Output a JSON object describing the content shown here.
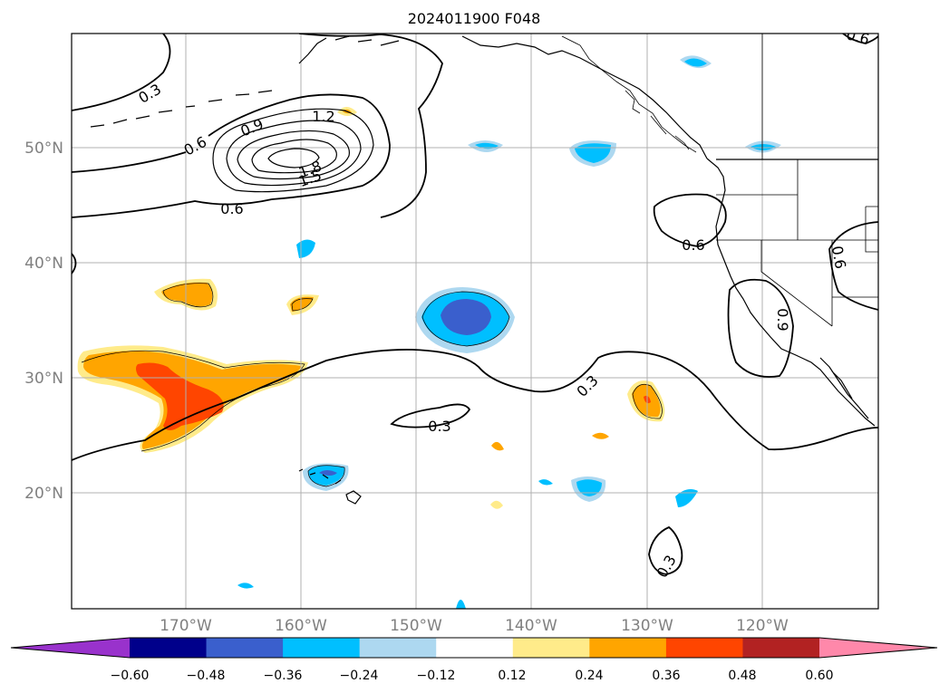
{
  "title": "2024011900 F048",
  "map": {
    "lat_labels": [
      "50°N",
      "40°N",
      "30°N",
      "20°N"
    ],
    "lon_labels": [
      "170°W",
      "160°W",
      "150°W",
      "140°W",
      "130°W",
      "120°W"
    ],
    "contour_labels": [
      "0.3",
      "0.6",
      "0.9",
      "1.2",
      "1.5",
      "1.8",
      "0.6",
      "0.6",
      "0.6",
      "0.9",
      "0.3",
      "0.3",
      "0.3",
      "0.6"
    ],
    "grid": true,
    "projection": "lat-lon"
  },
  "colorbar": {
    "ticks": [
      "−0.60",
      "−0.48",
      "−0.36",
      "−0.24",
      "−0.12",
      "0.12",
      "0.24",
      "0.36",
      "0.48",
      "0.60"
    ],
    "colors": [
      "#9932cc",
      "#00008b",
      "#3a5fcd",
      "#00bfff",
      "#add8f0",
      "#ffffff",
      "#ffeb8a",
      "#ffa500",
      "#ff4500",
      "#b22222",
      "#ff88aa"
    ],
    "extend": "both"
  },
  "colors": {
    "neg_light": "#add8f0",
    "neg_mid": "#00bfff",
    "neg_dark": "#3a5fcd",
    "neg_darker": "#00008b",
    "neg_extreme": "#9932cc",
    "pos_light": "#ffeb8a",
    "pos_mid": "#ffa500",
    "pos_strong": "#ff4500",
    "grid": "#b0b0b0",
    "tick_label": "#808080"
  }
}
